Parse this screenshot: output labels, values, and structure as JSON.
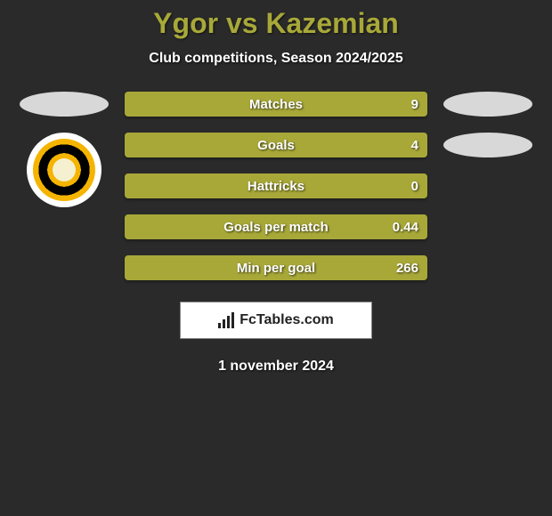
{
  "title": "Ygor vs Kazemian",
  "subtitle": "Club competitions, Season 2024/2025",
  "colors": {
    "bar_bg": "#a8a839",
    "title_color": "#a8a839",
    "page_bg": "#2a2a2a",
    "text": "#ffffff"
  },
  "stats": [
    {
      "label": "Matches",
      "value": "9"
    },
    {
      "label": "Goals",
      "value": "4"
    },
    {
      "label": "Hattricks",
      "value": "0"
    },
    {
      "label": "Goals per match",
      "value": "0.44"
    },
    {
      "label": "Min per goal",
      "value": "266"
    }
  ],
  "brand": {
    "name": "FcTables.com"
  },
  "date": "1 november 2024",
  "left_badges": {
    "club_icon": "sepahan-badge"
  }
}
